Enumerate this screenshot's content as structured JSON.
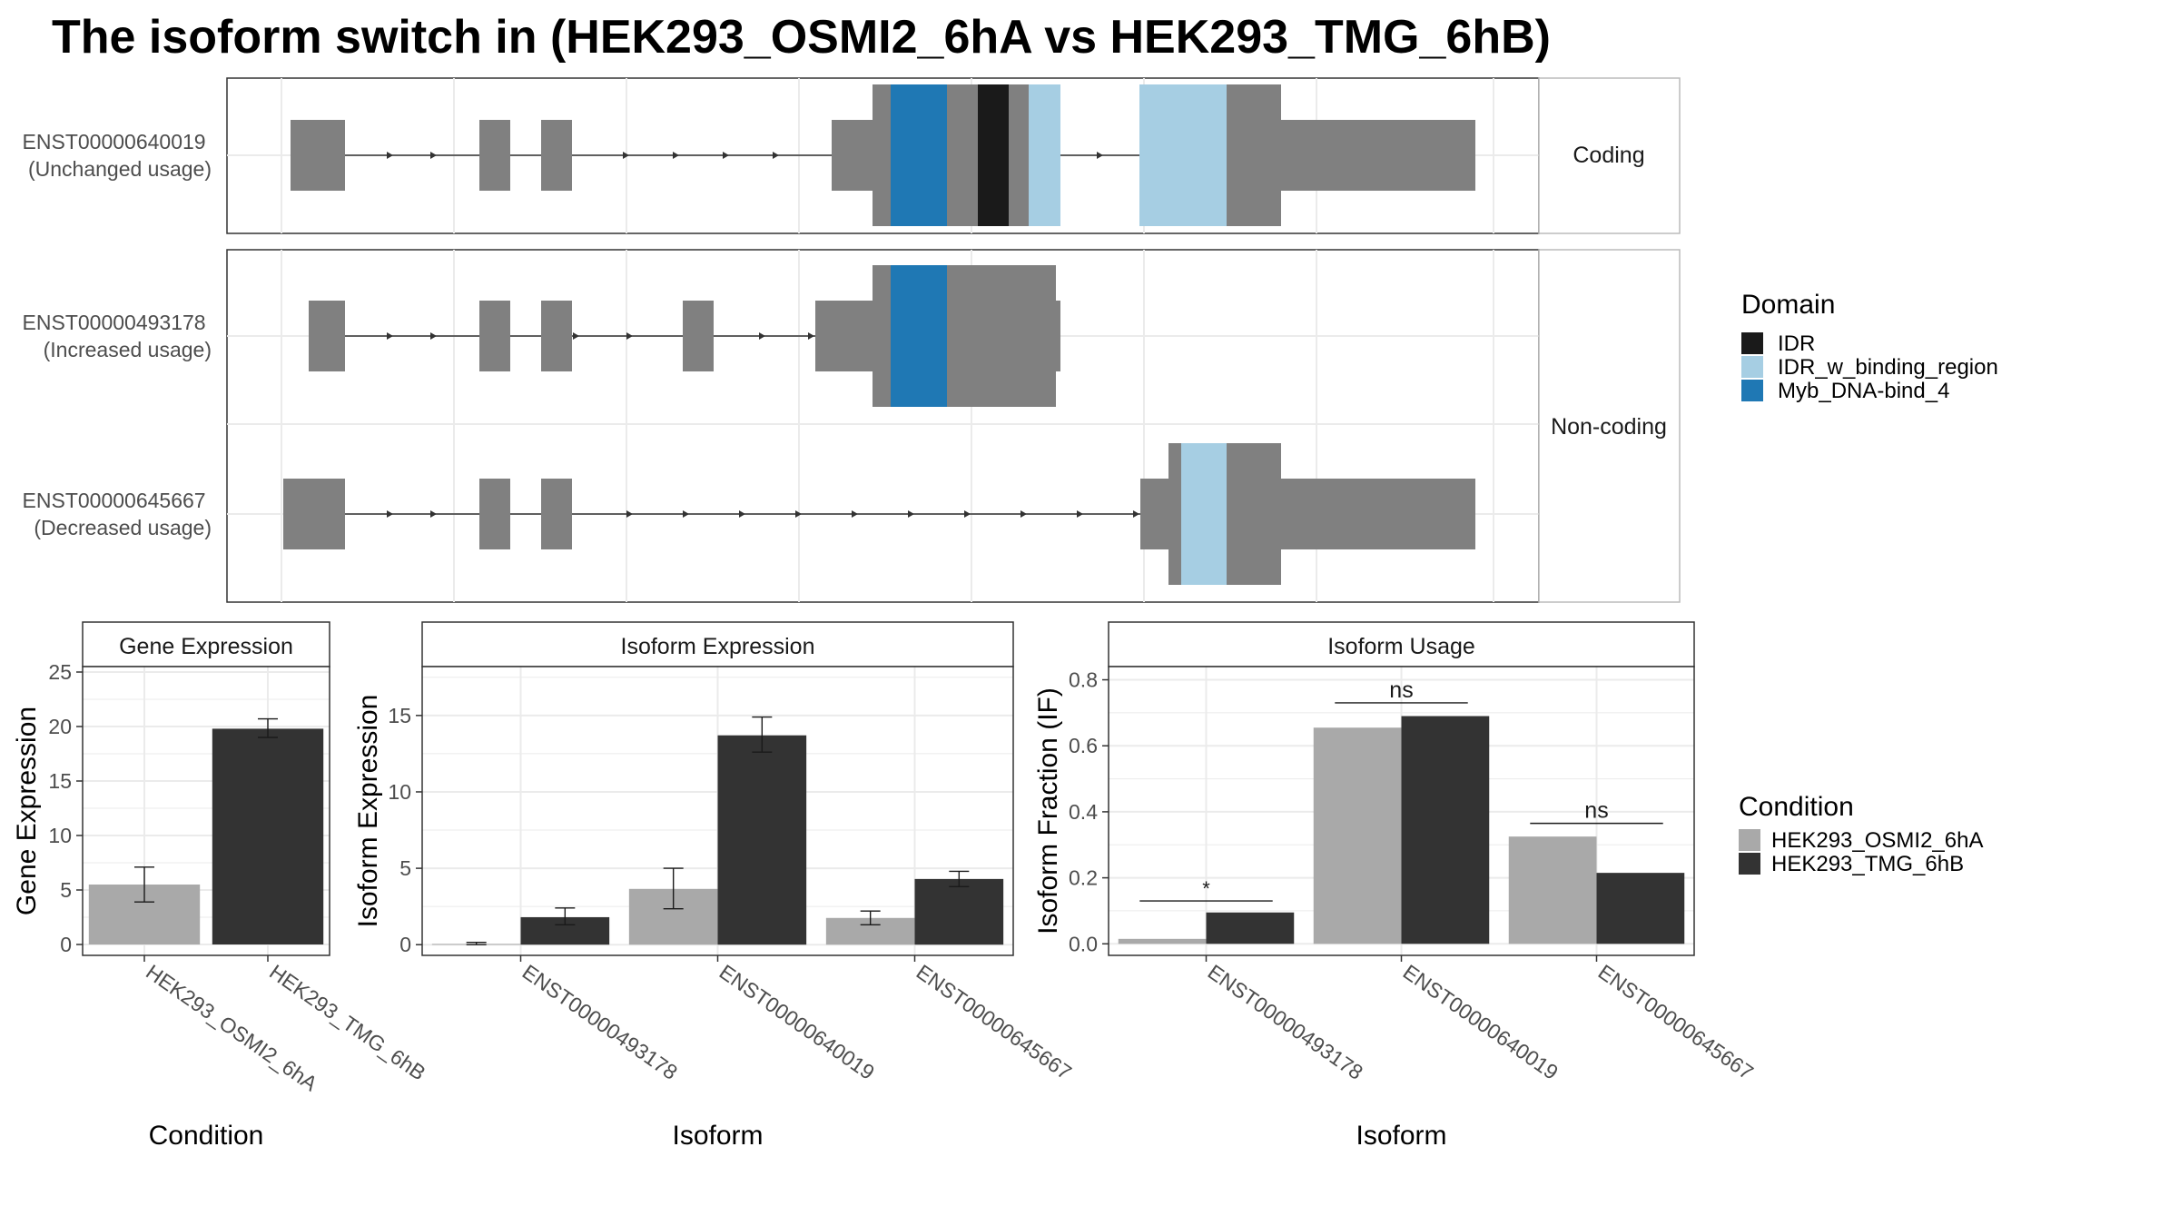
{
  "title": "The isoform switch in  (HEK293_OSMI2_6hA vs HEK293_TMG_6hB)",
  "colors": {
    "exon": "#808080",
    "IDR": "#1a1a1a",
    "IDR_w_binding_region": "#a6cee3",
    "Myb_DNA-bind_4": "#1f78b4",
    "cond_a": "#a9a9a9",
    "cond_b": "#333333"
  },
  "structure": {
    "facets": [
      "Coding",
      "Non-coding"
    ],
    "transcripts": [
      {
        "id": "ENST00000640019",
        "usage": "(Unchanged usage)",
        "facet": "Coding"
      },
      {
        "id": "ENST00000493178",
        "usage": "(Increased usage)",
        "facet": "Non-coding"
      },
      {
        "id": "ENST00000645667",
        "usage": "(Decreased usage)",
        "facet": "Non-coding"
      }
    ]
  },
  "legends": {
    "domain": {
      "title": "Domain",
      "items": [
        {
          "label": "IDR",
          "key": "IDR"
        },
        {
          "label": "IDR_w_binding_region",
          "key": "IDR_w_binding_region"
        },
        {
          "label": "Myb_DNA-bind_4",
          "key": "Myb_DNA-bind_4"
        }
      ]
    },
    "condition": {
      "title": "Condition",
      "items": [
        {
          "label": "HEK293_OSMI2_6hA",
          "key": "cond_a"
        },
        {
          "label": "HEK293_TMG_6hB",
          "key": "cond_b"
        }
      ]
    }
  },
  "chart_data": [
    {
      "type": "bar",
      "title": "Gene Expression",
      "xlabel": "Condition",
      "ylabel": "Gene Expression",
      "ylim": [
        -1,
        25.5
      ],
      "yticks": [
        0,
        5,
        10,
        15,
        20,
        25
      ],
      "categories": [
        "HEK293_OSMI2_6hA",
        "HEK293_TMG_6hB"
      ],
      "series": [
        {
          "values": [
            5.5,
            19.8
          ],
          "err_low": [
            3.9,
            19.0
          ],
          "err_high": [
            7.1,
            20.7
          ]
        }
      ]
    },
    {
      "type": "bar",
      "title": "Isoform Expression",
      "xlabel": "Isoform",
      "ylabel": "Isoform Expression",
      "ylim": [
        -0.7,
        18.2
      ],
      "yticks": [
        0,
        5,
        10,
        15
      ],
      "categories": [
        "ENST00000493178",
        "ENST00000640019",
        "ENST00000645667"
      ],
      "series": [
        {
          "name": "HEK293_OSMI2_6hA",
          "values": [
            0.05,
            3.65,
            1.75
          ],
          "err_low": [
            0.0,
            2.35,
            1.3
          ],
          "err_high": [
            0.15,
            5.0,
            2.2
          ]
        },
        {
          "name": "HEK293_TMG_6hB",
          "values": [
            1.8,
            13.7,
            4.3
          ],
          "err_low": [
            1.3,
            12.6,
            3.8
          ],
          "err_high": [
            2.4,
            14.9,
            4.8
          ]
        }
      ]
    },
    {
      "type": "bar",
      "title": "Isoform Usage",
      "xlabel": "Isoform",
      "ylabel": "Isoform Fraction (IF)",
      "ylim": [
        -0.035,
        0.84
      ],
      "yticks": [
        "0.0",
        "0.2",
        "0.4",
        "0.6",
        "0.8"
      ],
      "categories": [
        "ENST00000493178",
        "ENST00000640019",
        "ENST00000645667"
      ],
      "series": [
        {
          "name": "HEK293_OSMI2_6hA",
          "values": [
            0.015,
            0.655,
            0.325
          ]
        },
        {
          "name": "HEK293_TMG_6hB",
          "values": [
            0.095,
            0.69,
            0.215
          ]
        }
      ],
      "significance": [
        "*",
        "ns",
        "ns"
      ],
      "significance_y": [
        0.13,
        0.73,
        0.365
      ]
    }
  ]
}
